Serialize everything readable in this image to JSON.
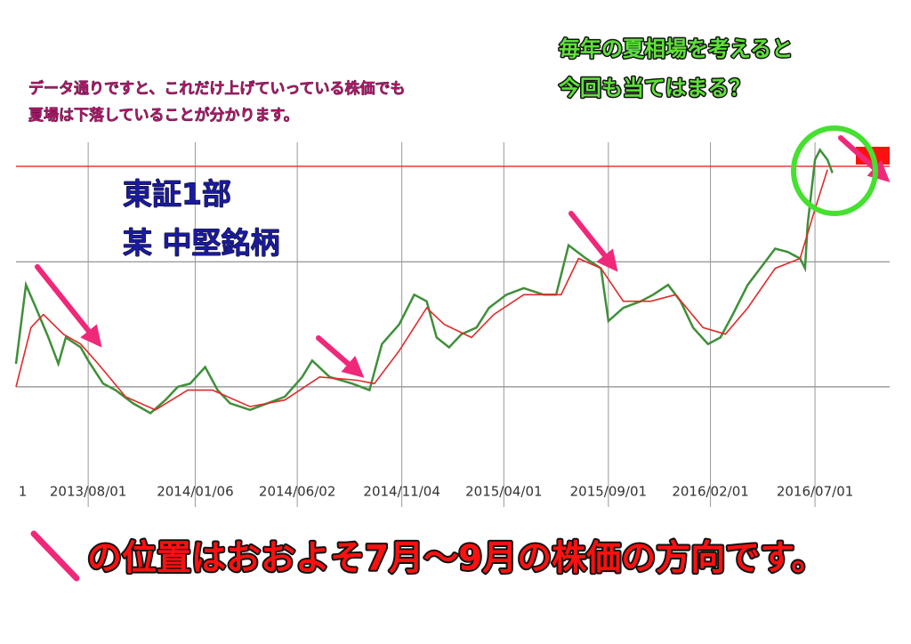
{
  "chart_data": {
    "type": "line",
    "annotations": [
      "データ通りですと、これだけ上げていっている株価でも",
      "夏場は下落していることが分かります。",
      "毎年の夏相場を考えると",
      "今回も当てはまる？",
      "東証1部",
      "某 中堅銘柄",
      "の位置はおおよそ7月～9月の株価の方向です。"
    ],
    "xlim": [
      2013.29,
      2016.8
    ],
    "xticks": [
      {
        "value": 2013.3,
        "label": "1"
      },
      {
        "value": 2013.58,
        "label": "2013/08/01"
      },
      {
        "value": 2014.01,
        "label": "2014/01/06"
      },
      {
        "value": 2014.42,
        "label": "2014/06/02"
      },
      {
        "value": 2014.84,
        "label": "2014/11/04"
      },
      {
        "value": 2015.25,
        "label": "2015/04/01"
      },
      {
        "value": 2015.67,
        "label": "2015/09/01"
      },
      {
        "value": 2016.08,
        "label": "2016/02/01"
      },
      {
        "value": 2016.5,
        "label": "2016/07/01"
      }
    ],
    "ylim": [
      0,
      100
    ],
    "ygrid": [
      23,
      61
    ],
    "reference_line": {
      "value": 90,
      "color": "#e83a3a"
    },
    "series": [
      {
        "color": "#3f8f3a",
        "x": [
          2013.29,
          2013.33,
          2013.37,
          2013.42,
          2013.46,
          2013.49,
          2013.55,
          2013.58,
          2013.64,
          2013.69,
          2013.76,
          2013.83,
          2013.89,
          2013.94,
          2013.99,
          2014.05,
          2014.1,
          2014.15,
          2014.23,
          2014.3,
          2014.37,
          2014.44,
          2014.48,
          2014.55,
          2014.64,
          2014.71,
          2014.76,
          2014.83,
          2014.89,
          2014.94,
          2014.98,
          2015.03,
          2015.08,
          2015.14,
          2015.19,
          2015.26,
          2015.33,
          2015.41,
          2015.46,
          2015.51,
          2015.58,
          2015.64,
          2015.67,
          2015.73,
          2015.8,
          2015.85,
          2015.91,
          2015.96,
          2016.01,
          2016.07,
          2016.12,
          2016.17,
          2016.23,
          2016.28,
          2016.34,
          2016.39,
          2016.44,
          2016.46,
          2016.47,
          2016.5,
          2016.52,
          2016.55,
          2016.57
        ],
        "values": [
          30,
          54,
          47,
          38,
          30,
          38,
          35,
          31,
          24,
          22,
          18,
          15,
          19,
          23,
          24,
          29,
          22,
          18,
          16,
          18,
          20,
          26,
          31,
          26,
          24,
          22,
          36,
          42,
          51,
          49,
          38,
          35,
          39,
          41,
          47,
          51,
          53,
          51,
          51,
          66,
          62,
          59,
          43,
          47,
          49,
          51,
          54,
          49,
          41,
          36,
          38,
          45,
          54,
          59,
          65,
          64,
          62,
          59,
          72,
          92,
          95,
          92,
          88
        ]
      },
      {
        "color": "#e02a2a",
        "x": [
          2013.29,
          2013.35,
          2013.4,
          2013.48,
          2013.55,
          2013.62,
          2013.73,
          2013.85,
          2013.98,
          2014.08,
          2014.23,
          2014.37,
          2014.51,
          2014.66,
          2014.73,
          2014.83,
          2014.94,
          2015.01,
          2015.12,
          2015.21,
          2015.33,
          2015.48,
          2015.55,
          2015.64,
          2015.73,
          2015.84,
          2015.94,
          2016.05,
          2016.14,
          2016.23,
          2016.34,
          2016.44,
          2016.5,
          2016.55
        ],
        "values": [
          23,
          41,
          45,
          39,
          36,
          30,
          20,
          16,
          22,
          22,
          17,
          19,
          26,
          25,
          24,
          34,
          47,
          42,
          38,
          45,
          51,
          51,
          62,
          59,
          49,
          49,
          51,
          41,
          39,
          47,
          59,
          62,
          77,
          89
        ]
      }
    ]
  }
}
